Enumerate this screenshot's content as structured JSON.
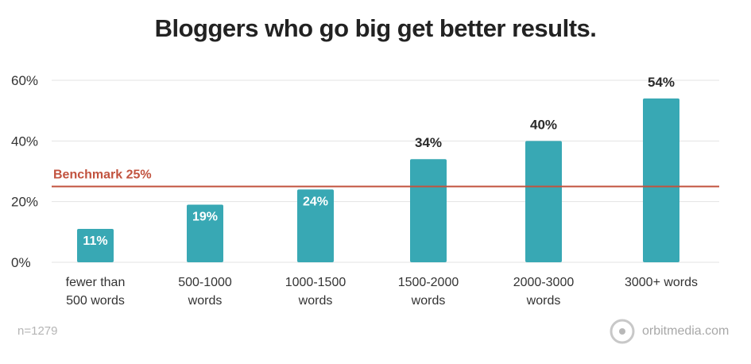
{
  "chart_data": {
    "type": "bar",
    "title": "Bloggers who go big get better results.",
    "categories": [
      [
        "fewer than",
        "500 words"
      ],
      [
        "500-1000",
        "words"
      ],
      [
        "1000-1500",
        "words"
      ],
      [
        "1500-2000",
        "words"
      ],
      [
        "2000-3000",
        "words"
      ],
      [
        "3000+ words"
      ]
    ],
    "values": [
      11,
      19,
      24,
      34,
      40,
      54
    ],
    "value_labels": [
      "11%",
      "19%",
      "24%",
      "34%",
      "40%",
      "54%"
    ],
    "ylim": [
      0,
      60
    ],
    "yticks": [
      0,
      20,
      40,
      60
    ],
    "ytick_labels": [
      "0%",
      "20%",
      "40%",
      "60%"
    ],
    "grid": true,
    "benchmark": {
      "value": 25,
      "label": "Benchmark 25%",
      "color": "#c2533f"
    },
    "bar_color": "#38a8b4"
  },
  "footer": {
    "sample_size": "n=1279",
    "brand": "orbitmedia.com",
    "brand_icon": "orbit-logo-icon"
  }
}
